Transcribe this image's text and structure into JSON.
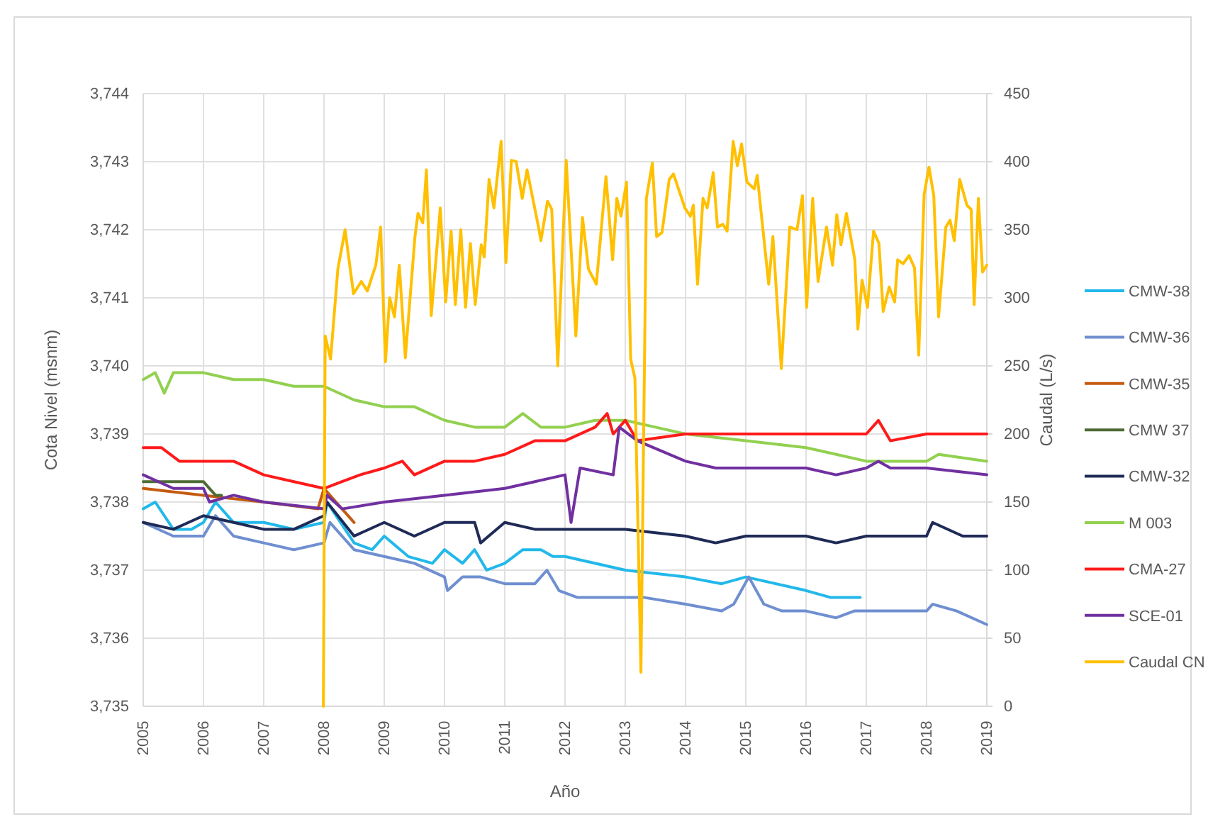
{
  "chart_data": {
    "type": "line",
    "xlabel": "Año",
    "ylabel": "Cota Nivel (msnm)",
    "y2label": "Caudal (L/s)",
    "xlim": [
      2005,
      2019
    ],
    "xticks": [
      2005,
      2006,
      2007,
      2008,
      2009,
      2010,
      2011,
      2012,
      2013,
      2014,
      2015,
      2016,
      2017,
      2018,
      2019
    ],
    "ylim": [
      3735,
      3744
    ],
    "yticks": [
      {
        "value": 3735,
        "label": "3,735"
      },
      {
        "value": 3736,
        "label": "3,736"
      },
      {
        "value": 3737,
        "label": "3,737"
      },
      {
        "value": 3738,
        "label": "3,738"
      },
      {
        "value": 3739,
        "label": "3,739"
      },
      {
        "value": 3740,
        "label": "3,740"
      },
      {
        "value": 3741,
        "label": "3,741"
      },
      {
        "value": 3742,
        "label": "3,742"
      },
      {
        "value": 3743,
        "label": "3,743"
      },
      {
        "value": 3744,
        "label": "3,744"
      }
    ],
    "y2lim": [
      0,
      450
    ],
    "y2ticks": [
      0,
      50,
      100,
      150,
      200,
      250,
      300,
      350,
      400,
      450
    ],
    "grid": true,
    "legend": "right",
    "marker": "none",
    "line_style": "solid",
    "series": [
      {
        "name": "CMW-38",
        "color": "#22b8ea",
        "x": [
          2005,
          2005.2,
          2005.5,
          2005.8,
          2006,
          2006.2,
          2006.5,
          2007,
          2007.5,
          2008,
          2008.05,
          2008.5,
          2008.8,
          2009,
          2009.4,
          2009.8,
          2010,
          2010.3,
          2010.5,
          2010.7,
          2011,
          2011.3,
          2011.6,
          2011.8,
          2012,
          2013,
          2014,
          2014.6,
          2015,
          2016,
          2016.4,
          2016.9
        ],
        "values": [
          3737.9,
          3738,
          3737.6,
          3737.6,
          3737.7,
          3738,
          3737.7,
          3737.7,
          3737.6,
          3737.7,
          3738,
          3737.4,
          3737.3,
          3737.5,
          3737.2,
          3737.1,
          3737.3,
          3737.1,
          3737.3,
          3737,
          3737.1,
          3737.3,
          3737.3,
          3737.2,
          3737.2,
          3737,
          3736.9,
          3736.8,
          3736.9,
          3736.7,
          3736.6,
          3736.6
        ]
      },
      {
        "name": "CMW-36",
        "color": "#6f8fd0",
        "x": [
          2005,
          2005.5,
          2006,
          2006.2,
          2006.5,
          2007,
          2007.5,
          2008,
          2008.1,
          2008.5,
          2009,
          2009.5,
          2010,
          2010.05,
          2010.3,
          2010.6,
          2011,
          2011.5,
          2011.7,
          2011.9,
          2012.2,
          2012.7,
          2013,
          2013.3,
          2014,
          2014.6,
          2014.8,
          2015.05,
          2015.3,
          2015.6,
          2016,
          2016.5,
          2016.8,
          2017.2,
          2017.6,
          2018,
          2018.1,
          2018.5,
          2019
        ],
        "values": [
          3737.7,
          3737.5,
          3737.5,
          3737.8,
          3737.5,
          3737.4,
          3737.3,
          3737.4,
          3737.7,
          3737.3,
          3737.2,
          3737.1,
          3736.9,
          3736.7,
          3736.9,
          3736.9,
          3736.8,
          3736.8,
          3737,
          3736.7,
          3736.6,
          3736.6,
          3736.6,
          3736.6,
          3736.5,
          3736.4,
          3736.5,
          3736.9,
          3736.5,
          3736.4,
          3736.4,
          3736.3,
          3736.4,
          3736.4,
          3736.4,
          3736.4,
          3736.5,
          3736.4,
          3736.2
        ]
      },
      {
        "name": "CMW-35",
        "color": "#c55a11",
        "x": [
          2005,
          2006,
          2007,
          2007.9,
          2008,
          2008.2,
          2008.5
        ],
        "values": [
          3738.2,
          3738.1,
          3738,
          3737.9,
          3738.2,
          3738,
          3737.7
        ]
      },
      {
        "name": "CMW 37",
        "color": "#4e6b34",
        "x": [
          2005,
          2005.5,
          2006,
          2006.1,
          2006.2,
          2006.3
        ],
        "values": [
          3738.3,
          3738.3,
          3738.3,
          3738.2,
          3738.1,
          3738.1
        ]
      },
      {
        "name": "CMW-32",
        "color": "#1f2a56",
        "x": [
          2005,
          2005.5,
          2006,
          2006.5,
          2007,
          2007.5,
          2008,
          2008.05,
          2008.5,
          2009,
          2009.5,
          2010,
          2010.5,
          2010.6,
          2011,
          2011.5,
          2012,
          2013,
          2014,
          2014.5,
          2015,
          2016,
          2016.5,
          2017,
          2018,
          2018.1,
          2018.6,
          2019
        ],
        "values": [
          3737.7,
          3737.6,
          3737.8,
          3737.7,
          3737.6,
          3737.6,
          3737.8,
          3738,
          3737.5,
          3737.7,
          3737.5,
          3737.7,
          3737.7,
          3737.4,
          3737.7,
          3737.6,
          3737.6,
          3737.6,
          3737.5,
          3737.4,
          3737.5,
          3737.5,
          3737.4,
          3737.5,
          3737.5,
          3737.7,
          3737.5,
          3737.5
        ]
      },
      {
        "name": "M 003",
        "color": "#92d050",
        "x": [
          2005,
          2005.2,
          2005.35,
          2005.5,
          2006,
          2006.5,
          2007,
          2007.5,
          2008,
          2008.5,
          2009,
          2009.5,
          2010,
          2010.5,
          2011,
          2011.3,
          2011.6,
          2012,
          2012.5,
          2013,
          2013.5,
          2014,
          2015,
          2016,
          2016.5,
          2017,
          2018,
          2018.2,
          2019
        ],
        "values": [
          3739.8,
          3739.9,
          3739.6,
          3739.9,
          3739.9,
          3739.8,
          3739.8,
          3739.7,
          3739.7,
          3739.5,
          3739.4,
          3739.4,
          3739.2,
          3739.1,
          3739.1,
          3739.3,
          3739.1,
          3739.1,
          3739.2,
          3739.2,
          3739.1,
          3739,
          3738.9,
          3738.8,
          3738.7,
          3738.6,
          3738.6,
          3738.7,
          3738.6
        ]
      },
      {
        "name": "CMA-27",
        "color": "#ff1a1a",
        "x": [
          2005,
          2005.3,
          2005.6,
          2006,
          2006.5,
          2007,
          2007.5,
          2008,
          2008.3,
          2008.6,
          2009,
          2009.3,
          2009.5,
          2010,
          2010.5,
          2011,
          2011.5,
          2012,
          2012.5,
          2012.7,
          2012.8,
          2013,
          2013.2,
          2014,
          2015,
          2015.5,
          2016,
          2016.5,
          2017,
          2017.2,
          2017.4,
          2018,
          2019
        ],
        "values": [
          3738.8,
          3738.8,
          3738.6,
          3738.6,
          3738.6,
          3738.4,
          3738.3,
          3738.2,
          3738.3,
          3738.4,
          3738.5,
          3738.6,
          3738.4,
          3738.6,
          3738.6,
          3738.7,
          3738.9,
          3738.9,
          3739.1,
          3739.3,
          3739,
          3739.2,
          3738.9,
          3739,
          3739,
          3739,
          3739,
          3739,
          3739,
          3739.2,
          3738.9,
          3739,
          3739
        ]
      },
      {
        "name": "SCE-01",
        "color": "#7030a0",
        "x": [
          2005,
          2005.5,
          2006,
          2006.1,
          2006.5,
          2007,
          2008,
          2008.05,
          2008.3,
          2009,
          2010,
          2011,
          2011.5,
          2012,
          2012.1,
          2012.25,
          2012.8,
          2012.9,
          2013.2,
          2014,
          2014.5,
          2015,
          2016,
          2016.5,
          2017,
          2017.2,
          2017.4,
          2018,
          2019
        ],
        "values": [
          3738.4,
          3738.2,
          3738.2,
          3738,
          3738.1,
          3738,
          3737.9,
          3738.1,
          3737.9,
          3738,
          3738.1,
          3738.2,
          3738.3,
          3738.4,
          3737.7,
          3738.5,
          3738.4,
          3739.1,
          3738.9,
          3738.6,
          3738.5,
          3738.5,
          3738.5,
          3738.4,
          3738.5,
          3738.6,
          3738.5,
          3738.5,
          3738.4
        ]
      },
      {
        "name": "Caudal CN",
        "color": "#ffc000",
        "axis": "y2",
        "x": [
          2007.99,
          2008.02,
          2008.11,
          2008.23,
          2008.35,
          2008.49,
          2008.62,
          2008.72,
          2008.86,
          2008.94,
          2009.02,
          2009.09,
          2009.17,
          2009.25,
          2009.35,
          2009.51,
          2009.56,
          2009.64,
          2009.7,
          2009.78,
          2009.93,
          2010.02,
          2010.11,
          2010.18,
          2010.27,
          2010.35,
          2010.43,
          2010.51,
          2010.61,
          2010.66,
          2010.74,
          2010.82,
          2010.94,
          2011.02,
          2011.11,
          2011.19,
          2011.29,
          2011.37,
          2011.56,
          2011.6,
          2011.71,
          2011.78,
          2011.88,
          2012.02,
          2012.18,
          2012.29,
          2012.39,
          2012.52,
          2012.68,
          2012.79,
          2012.86,
          2012.93,
          2013.02,
          2013.09,
          2013.16,
          2013.26,
          2013.35,
          2013.45,
          2013.52,
          2013.61,
          2013.73,
          2013.8,
          2013.99,
          2014.08,
          2014.13,
          2014.2,
          2014.29,
          2014.36,
          2014.46,
          2014.53,
          2014.62,
          2014.69,
          2014.79,
          2014.86,
          2014.93,
          2015.02,
          2015.14,
          2015.19,
          2015.38,
          2015.45,
          2015.59,
          2015.73,
          2015.85,
          2015.94,
          2016.01,
          2016.11,
          2016.2,
          2016.34,
          2016.44,
          2016.51,
          2016.58,
          2016.67,
          2016.81,
          2016.86,
          2016.93,
          2017.02,
          2017.12,
          2017.21,
          2017.28,
          2017.38,
          2017.47,
          2017.52,
          2017.61,
          2017.71,
          2017.8,
          2017.87,
          2017.96,
          2018.04,
          2018.12,
          2018.2,
          2018.32,
          2018.39,
          2018.46,
          2018.55,
          2018.67,
          2018.74,
          2018.79,
          2018.86,
          2018.93,
          2019
        ],
        "values": [
          0,
          272,
          255,
          321,
          350,
          303,
          312,
          305,
          324,
          352,
          253,
          300,
          286,
          324,
          256,
          345,
          362,
          355,
          394,
          287,
          366,
          297,
          349,
          295,
          350,
          293,
          340,
          295,
          339,
          330,
          387,
          366,
          415,
          326,
          401,
          400,
          373,
          394,
          352,
          342,
          371,
          365,
          250,
          401,
          272,
          359,
          321,
          310,
          389,
          328,
          373,
          360,
          385,
          255,
          241,
          25,
          373,
          399,
          345,
          348,
          387,
          391,
          366,
          360,
          368,
          310,
          373,
          366,
          392,
          352,
          354,
          349,
          415,
          397,
          413,
          385,
          380,
          390,
          310,
          345,
          248,
          352,
          350,
          375,
          293,
          373,
          312,
          352,
          324,
          361,
          339,
          362,
          328,
          277,
          313,
          293,
          349,
          340,
          290,
          308,
          297,
          328,
          325,
          331,
          322,
          258,
          376,
          396,
          375,
          286,
          352,
          357,
          342,
          387,
          368,
          365,
          295,
          373,
          319,
          324
        ]
      }
    ]
  }
}
